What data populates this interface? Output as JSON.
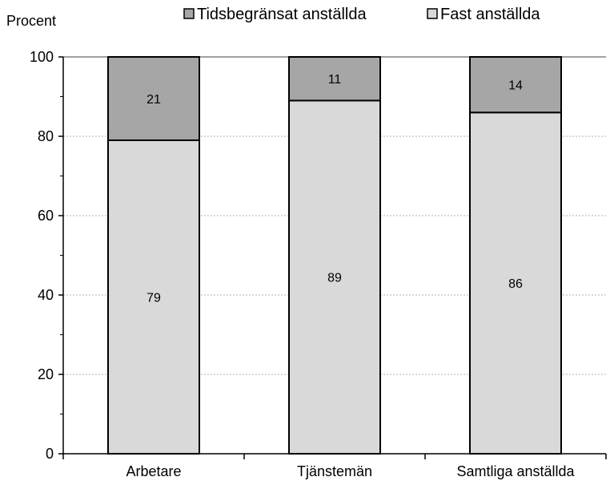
{
  "chart_data": {
    "type": "bar",
    "stacked": true,
    "ylabel": "Procent",
    "ylim": [
      0,
      100
    ],
    "yticks": [
      0,
      20,
      40,
      60,
      80,
      100
    ],
    "grid": true,
    "legend_position": "top",
    "categories": [
      "Arbetare",
      "Tjänstemän",
      "Samtliga anställda"
    ],
    "series": [
      {
        "name": "Fast anställda",
        "values": [
          79,
          89,
          86
        ],
        "color": "#d9d9d9"
      },
      {
        "name": "Tidsbegränsat anställda",
        "values": [
          21,
          11,
          14
        ],
        "color": "#a6a6a6"
      }
    ],
    "legend_order": [
      "Tidsbegränsat anställda",
      "Fast anställda"
    ]
  }
}
